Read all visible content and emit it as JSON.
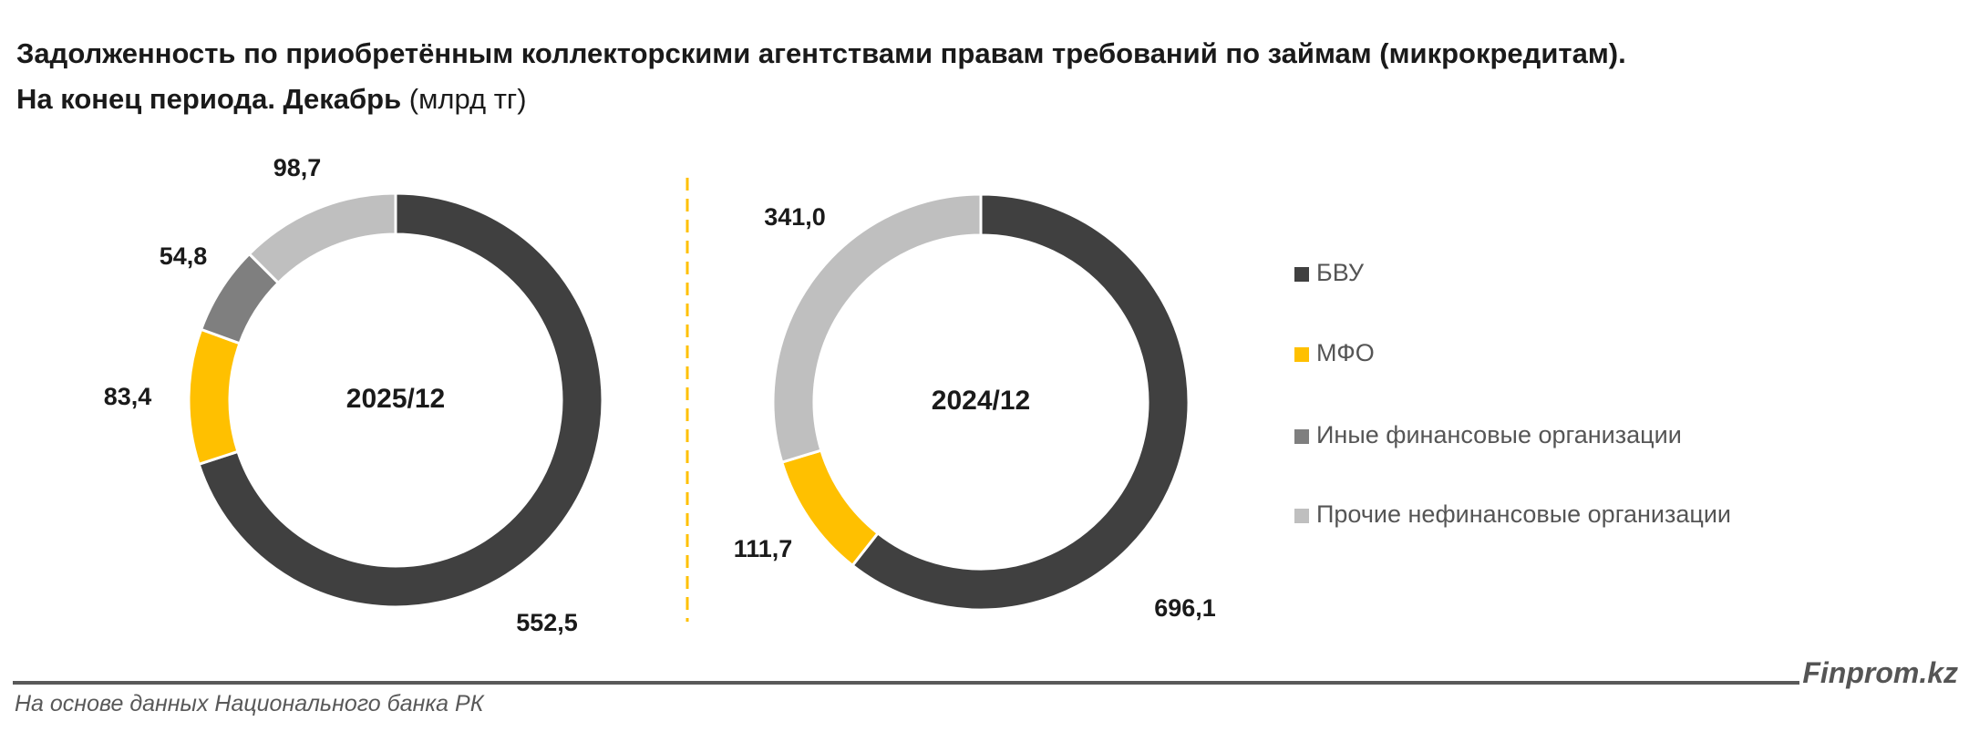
{
  "title": {
    "line1": "Задолженность по приобретённым коллекторскими агентствами правам требований по займам (микрокредитам).",
    "line2": "На конец периода. Декабрь",
    "unit": "(млрд тг)"
  },
  "legend": [
    {
      "label": "БВУ",
      "color": "#404040"
    },
    {
      "label": "МФО",
      "color": "#FFC000"
    },
    {
      "label": "Иные финансовые организации",
      "color": "#7F7F7F"
    },
    {
      "label": "Прочие нефинансовые организации",
      "color": "#BFBFBF"
    }
  ],
  "chart_data": [
    {
      "type": "pie",
      "variant": "donut",
      "center_label": "2025/12",
      "categories": [
        "БВУ",
        "МФО",
        "Иные финансовые организации",
        "Прочие нефинансовые организации"
      ],
      "values": [
        552.5,
        83.4,
        54.8,
        98.7
      ],
      "value_labels": [
        "552,5",
        "83,4",
        "54,8",
        "98,7"
      ],
      "colors": [
        "#404040",
        "#FFC000",
        "#7F7F7F",
        "#BFBFBF"
      ]
    },
    {
      "type": "pie",
      "variant": "donut",
      "center_label": "2024/12",
      "categories": [
        "БВУ",
        "МФО",
        "Прочие нефинансовые организации"
      ],
      "values": [
        696.1,
        111.7,
        341.0
      ],
      "value_labels": [
        "696,1",
        "111,7",
        "341,0"
      ],
      "colors": [
        "#404040",
        "#FFC000",
        "#BFBFBF"
      ]
    }
  ],
  "footer": {
    "source": "На основе данных Национального банка РК",
    "brand": "Finprom.kz"
  }
}
